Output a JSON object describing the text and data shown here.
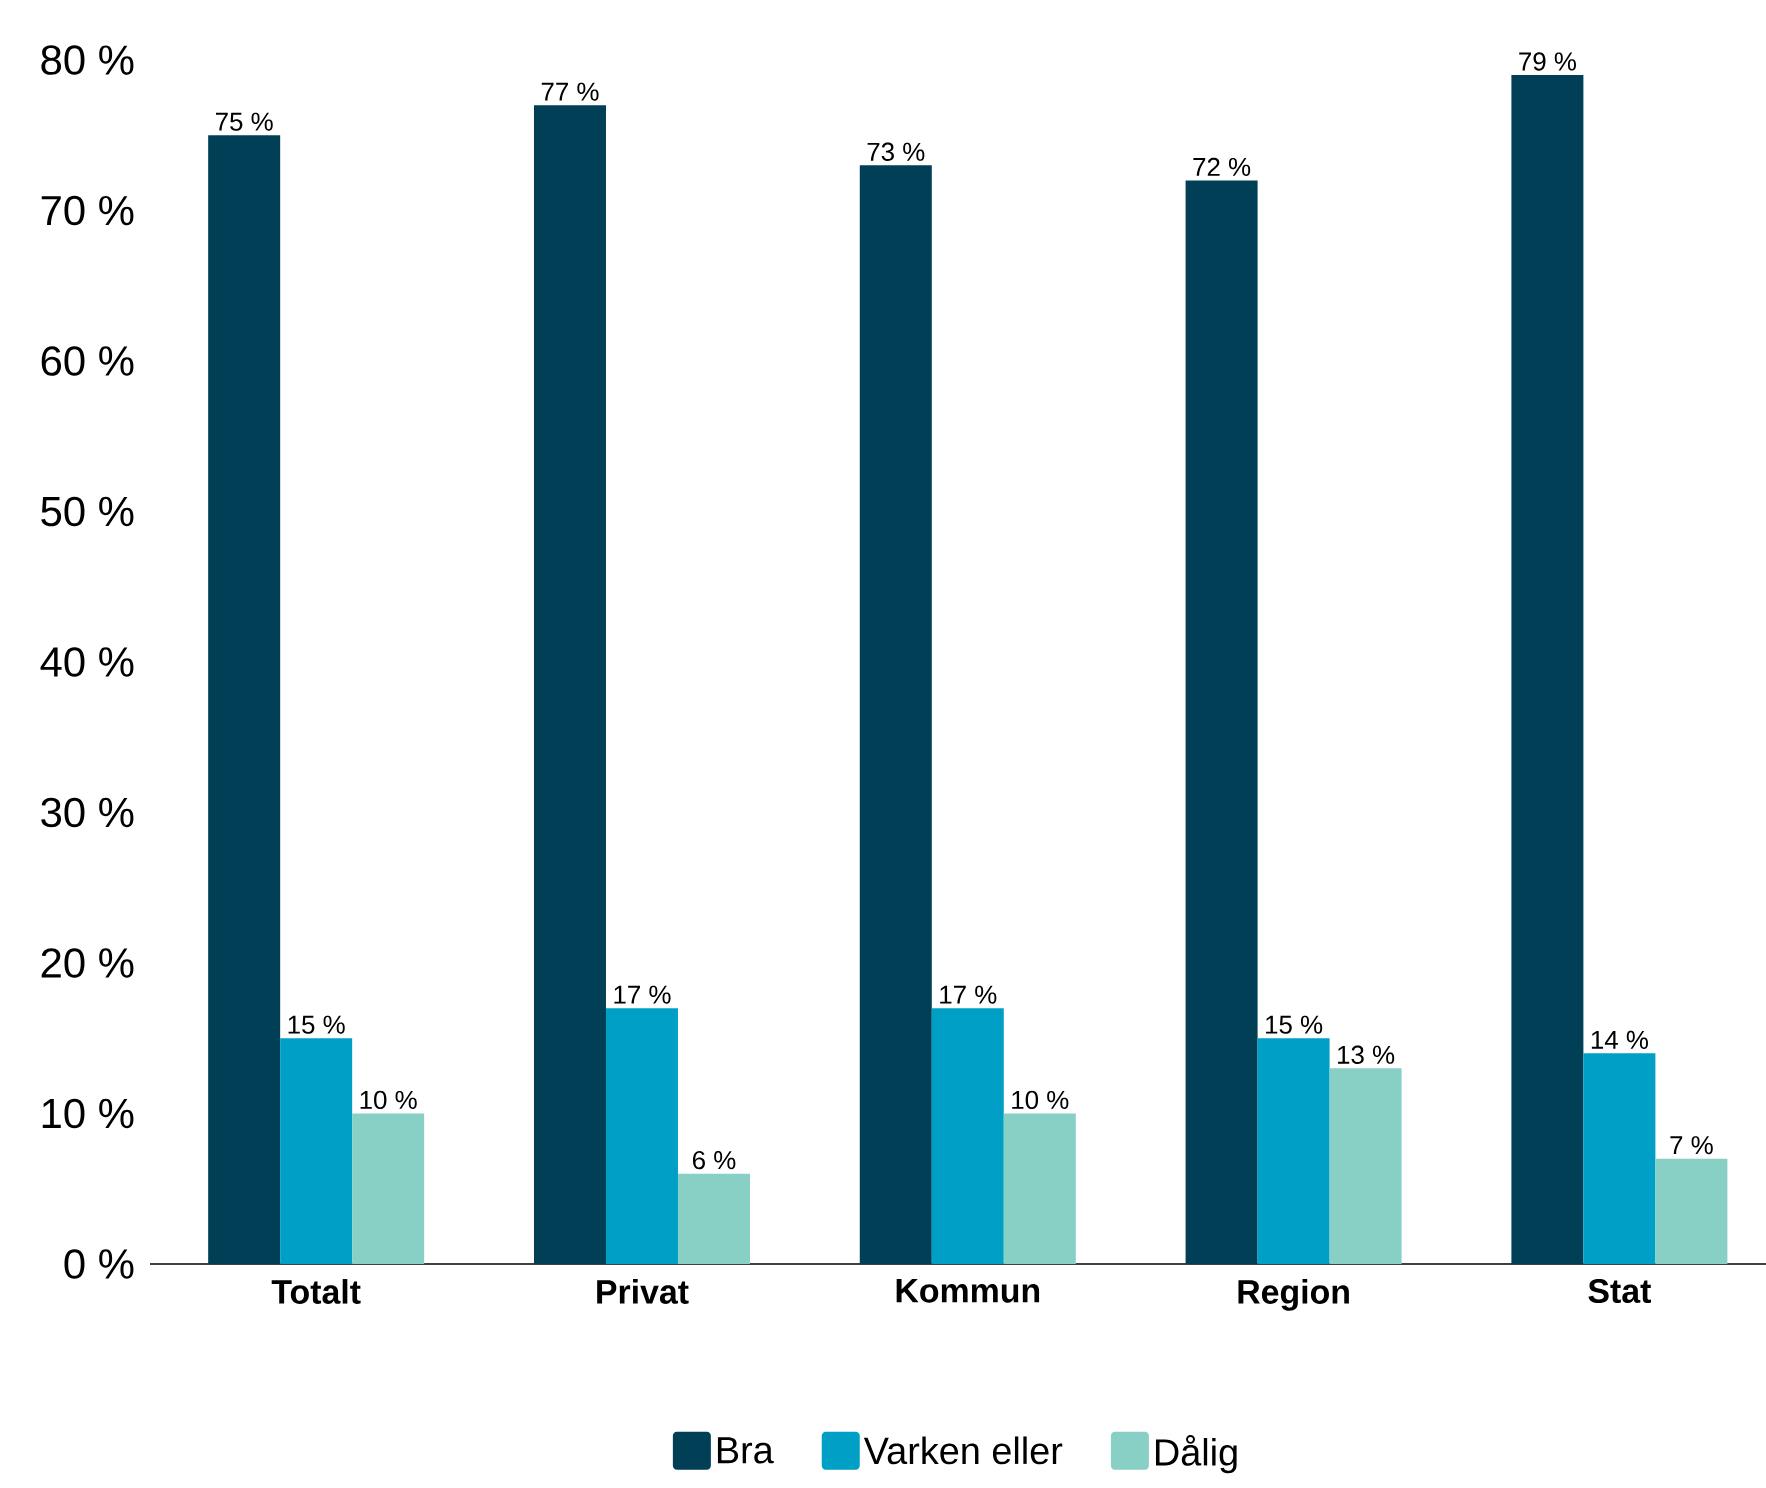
{
  "chart_data": {
    "type": "bar",
    "categories": [
      "Totalt",
      "Privat",
      "Kommun",
      "Region",
      "Stat"
    ],
    "series": [
      {
        "name": "Bra",
        "color": "#003f56",
        "values": [
          75,
          77,
          73,
          72,
          79
        ],
        "value_labels": [
          "75 %",
          "77 %",
          "73 %",
          "72 %",
          "79 %"
        ]
      },
      {
        "name": "Varken eller",
        "color": "#00a0c6",
        "values": [
          15,
          17,
          17,
          15,
          14
        ],
        "value_labels": [
          "15 %",
          "17 %",
          "17 %",
          "15 %",
          "14 %"
        ]
      },
      {
        "name": "Dålig",
        "color": "#88cfc6",
        "values": [
          10,
          6,
          10,
          13,
          7
        ],
        "value_labels": [
          "10 %",
          "6 %",
          "10 %",
          "13 %",
          "7 %"
        ]
      }
    ],
    "ylim": [
      0,
      80
    ],
    "yticks": [
      {
        "value": 0,
        "label": "0 %"
      },
      {
        "value": 10,
        "label": "10 %"
      },
      {
        "value": 20,
        "label": "20 %"
      },
      {
        "value": 30,
        "label": "30 %"
      },
      {
        "value": 40,
        "label": "40 %"
      },
      {
        "value": 50,
        "label": "50 %"
      },
      {
        "value": 60,
        "label": "60 %"
      },
      {
        "value": 70,
        "label": "70 %"
      },
      {
        "value": 80,
        "label": "80 %"
      }
    ],
    "legend": "bottom"
  }
}
